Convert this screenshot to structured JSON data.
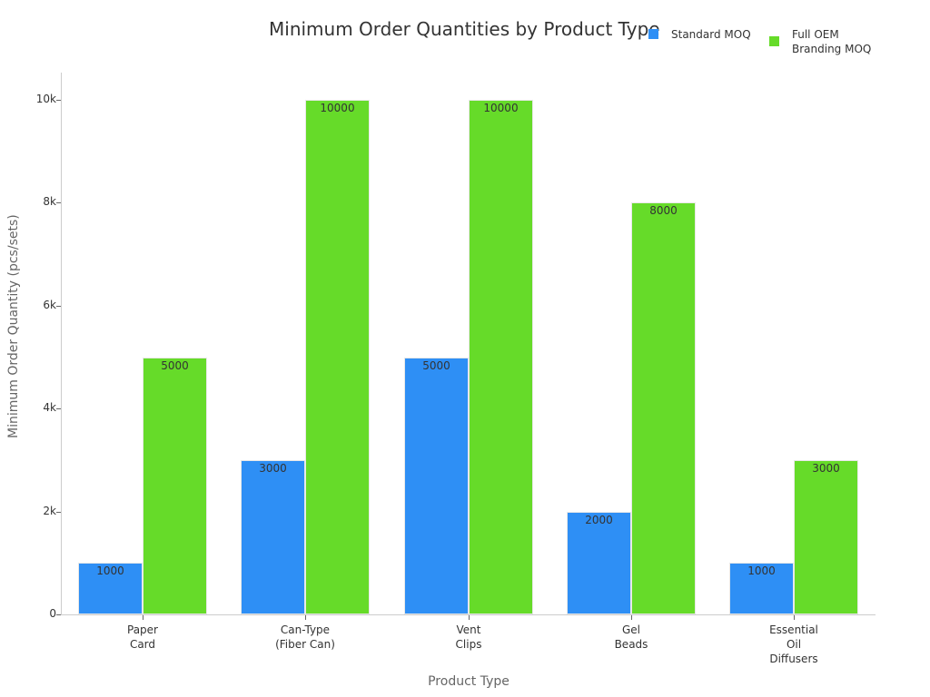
{
  "chart_data": {
    "type": "bar",
    "title": "Minimum Order Quantities by Product Type",
    "xlabel": "Product Type",
    "ylabel": "Minimum Order Quantity (pcs/sets)",
    "categories": [
      "Paper\nCard",
      "Can-Type\n(Fiber Can)",
      "Vent\nClips",
      "Gel\nBeads",
      "Essential\nOil\nDiffusers"
    ],
    "series": [
      {
        "name": "Standard MOQ",
        "color": "#2e8ff5",
        "values": [
          1000,
          3000,
          5000,
          2000,
          1000
        ]
      },
      {
        "name": "Full OEM\nBranding MOQ",
        "color": "#66db29",
        "values": [
          5000,
          10000,
          10000,
          8000,
          3000
        ]
      }
    ],
    "ylim": [
      0,
      10500
    ],
    "yticks": [
      0,
      2000,
      4000,
      6000,
      8000,
      10000
    ],
    "ytick_labels": [
      "0",
      "2k",
      "4k",
      "6k",
      "8k",
      "10k"
    ],
    "grid": false,
    "legend_position": "top-right",
    "data_labels": true
  }
}
